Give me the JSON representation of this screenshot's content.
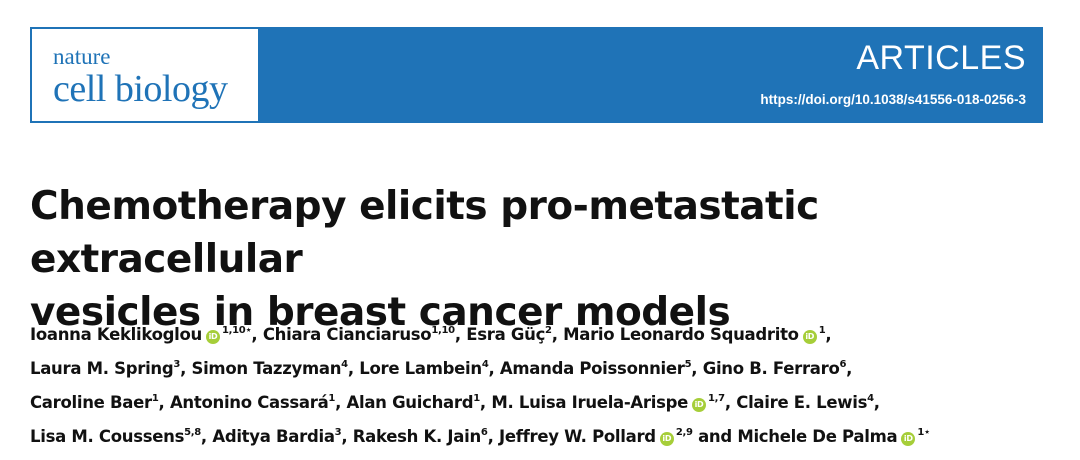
{
  "journal": {
    "logo_line1": "nature",
    "logo_line2": "cell biology",
    "section": "ARTICLES",
    "doi": "https://doi.org/10.1038/s41556-018-0256-3",
    "brand_color": "#1f73b7"
  },
  "article": {
    "title_line1": "Chemotherapy elicits pro-metastatic extracellular",
    "title_line2": "vesicles in breast cancer models"
  },
  "authors": [
    {
      "name": "Ioanna Keklikoglou",
      "orcid": true,
      "sup": "1,10⋆",
      "sep": ", "
    },
    {
      "name": "Chiara Cianciaruso",
      "orcid": false,
      "sup": "1,10",
      "sep": ", "
    },
    {
      "name": "Esra Güç",
      "orcid": false,
      "sup": "2",
      "sep": ", "
    },
    {
      "name": "Mario Leonardo Squadrito",
      "orcid": true,
      "sup": "1",
      "sep": ","
    },
    {
      "name": "Laura M. Spring",
      "orcid": false,
      "sup": "3",
      "sep": ", "
    },
    {
      "name": "Simon Tazzyman",
      "orcid": false,
      "sup": "4",
      "sep": ", "
    },
    {
      "name": "Lore Lambein",
      "orcid": false,
      "sup": "4",
      "sep": ", "
    },
    {
      "name": "Amanda Poissonnier",
      "orcid": false,
      "sup": "5",
      "sep": ", "
    },
    {
      "name": "Gino B. Ferraro",
      "orcid": false,
      "sup": "6",
      "sep": ","
    },
    {
      "name": "Caroline Baer",
      "orcid": false,
      "sup": "1",
      "sep": ", "
    },
    {
      "name": "Antonino Cassará",
      "orcid": false,
      "sup": "1",
      "sep": ", "
    },
    {
      "name": "Alan Guichard",
      "orcid": false,
      "sup": "1",
      "sep": ", "
    },
    {
      "name": "M. Luisa Iruela-Arispe",
      "orcid": true,
      "sup": "1,7",
      "sep": ", "
    },
    {
      "name": "Claire E. Lewis",
      "orcid": false,
      "sup": "4",
      "sep": ","
    },
    {
      "name": "Lisa M. Coussens",
      "orcid": false,
      "sup": "5,8",
      "sep": ", "
    },
    {
      "name": "Aditya Bardia",
      "orcid": false,
      "sup": "3",
      "sep": ", "
    },
    {
      "name": "Rakesh K. Jain",
      "orcid": false,
      "sup": "6",
      "sep": ", "
    },
    {
      "name": "Jeffrey W. Pollard",
      "orcid": true,
      "sup": "2,9",
      "sep": " and "
    },
    {
      "name": "Michele De Palma",
      "orcid": true,
      "sup": "1⋆",
      "sep": ""
    }
  ],
  "orcid_color": "#a6ce39",
  "orcid_glyph": "iD"
}
